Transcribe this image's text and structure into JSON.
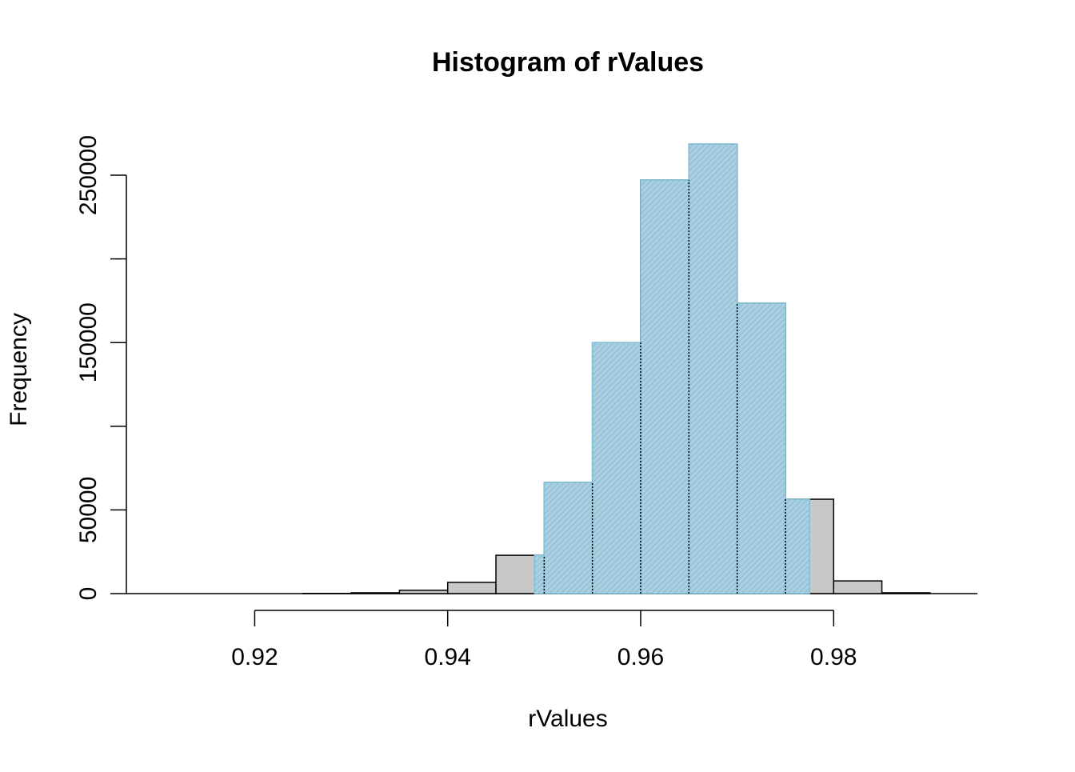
{
  "chart_data": {
    "type": "histogram",
    "title": "Histogram of rValues",
    "x_label": "rValues",
    "y_label": "Frequency",
    "bins": [
      0.91,
      0.915,
      0.92,
      0.925,
      0.93,
      0.935,
      0.94,
      0.945,
      0.95,
      0.955,
      0.96,
      0.965,
      0.97,
      0.975,
      0.98,
      0.985,
      0.99
    ],
    "values": [
      0,
      0,
      0,
      100,
      500,
      2000,
      6700,
      22900,
      66400,
      150000,
      247100,
      268600,
      173500,
      56400,
      7600,
      500
    ],
    "color": "#c8c8c8",
    "highlight": {
      "range": [
        0.949,
        0.9775
      ],
      "color": "#a9cfe0"
    },
    "xlim": [
      0.9067,
      0.9949
    ],
    "xticks": [
      0.92,
      0.94,
      0.96,
      0.98
    ],
    "ylim": [
      0,
      270000
    ],
    "yticks": [
      0,
      50000,
      {
        "value": 100000,
        "label": null
      },
      150000,
      {
        "value": 200000,
        "label": null
      },
      250000
    ]
  }
}
